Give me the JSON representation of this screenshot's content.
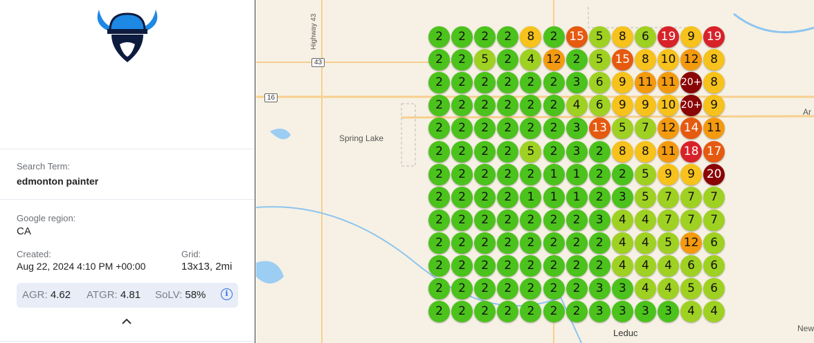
{
  "sidebar": {
    "logo": "viking-helmet-pin-logo",
    "search_term_label": "Search Term:",
    "search_term": "edmonton painter",
    "region_label": "Google region:",
    "region": "CA",
    "created_label": "Created:",
    "created": "Aug 22, 2024 4:10 PM +00:00",
    "grid_label": "Grid:",
    "grid": "13x13, 2mi",
    "stats": {
      "agr_label": "AGR:",
      "agr": "4.62",
      "atgr_label": "ATGR:",
      "atgr": "4.81",
      "solv_label": "SoLV:",
      "solv": "58%"
    },
    "info_icon": "info-icon",
    "collapse_icon": "chevron-up-icon"
  },
  "map": {
    "labels": {
      "highway43": "Highway 43",
      "shield43": "43",
      "shield16": "16",
      "spring_lake": "Spring Lake",
      "leduc": "Leduc",
      "ar": "Ar",
      "new": "New"
    },
    "rank_colors": {
      "1-3": "#4cc21c",
      "4-7": "#9fd122",
      "8-10": "#f6c21b",
      "11-12": "#f49a0f",
      "13-17": "#e65a10",
      "18-19": "#d7222a",
      "20+": "#8a0505"
    },
    "grid": [
      [
        "2",
        "2",
        "2",
        "2",
        "8",
        "2",
        "15",
        "5",
        "8",
        "6",
        "19",
        "9",
        "19"
      ],
      [
        "2",
        "2",
        "5",
        "2",
        "4",
        "12",
        "2",
        "5",
        "15",
        "8",
        "10",
        "12",
        "8"
      ],
      [
        "2",
        "2",
        "2",
        "2",
        "2",
        "2",
        "3",
        "6",
        "9",
        "11",
        "11",
        "20+",
        "8"
      ],
      [
        "2",
        "2",
        "2",
        "2",
        "2",
        "2",
        "4",
        "6",
        "9",
        "9",
        "10",
        "20+",
        "9"
      ],
      [
        "2",
        "2",
        "2",
        "2",
        "2",
        "2",
        "3",
        "13",
        "5",
        "7",
        "12",
        "14",
        "11"
      ],
      [
        "2",
        "2",
        "2",
        "2",
        "5",
        "2",
        "3",
        "2",
        "8",
        "8",
        "11",
        "18",
        "17"
      ],
      [
        "2",
        "2",
        "2",
        "2",
        "2",
        "1",
        "1",
        "2",
        "2",
        "5",
        "9",
        "9",
        "20"
      ],
      [
        "2",
        "2",
        "2",
        "2",
        "1",
        "1",
        "1",
        "2",
        "3",
        "5",
        "7",
        "7",
        "7"
      ],
      [
        "2",
        "2",
        "2",
        "2",
        "2",
        "2",
        "2",
        "3",
        "4",
        "4",
        "7",
        "7",
        "7"
      ],
      [
        "2",
        "2",
        "2",
        "2",
        "2",
        "2",
        "2",
        "2",
        "4",
        "4",
        "5",
        "12",
        "6"
      ],
      [
        "2",
        "2",
        "2",
        "2",
        "2",
        "2",
        "2",
        "2",
        "4",
        "4",
        "4",
        "6",
        "6"
      ],
      [
        "2",
        "2",
        "2",
        "2",
        "2",
        "2",
        "2",
        "3",
        "3",
        "4",
        "4",
        "5",
        "6"
      ],
      [
        "2",
        "2",
        "2",
        "2",
        "2",
        "2",
        "2",
        "3",
        "3",
        "3",
        "3",
        "4",
        "4"
      ]
    ]
  }
}
